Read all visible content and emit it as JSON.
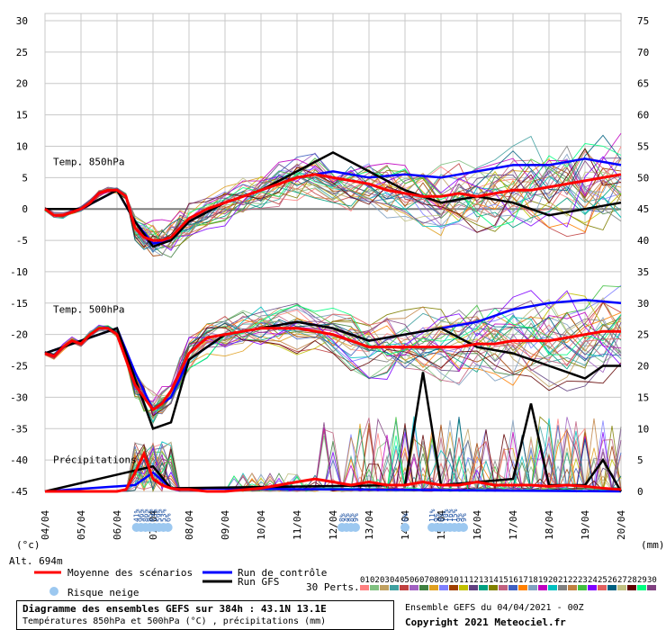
{
  "chart_data": {
    "type": "line",
    "x_dates": [
      "04/04",
      "05/04",
      "06/04",
      "07/04",
      "08/04",
      "09/04",
      "10/04",
      "11/04",
      "12/04",
      "13/04",
      "14/04",
      "15/04",
      "16/04",
      "17/04",
      "18/04",
      "19/04",
      "20/04"
    ],
    "x_range_hours": [
      0,
      384
    ],
    "left_ticks": [
      30,
      25,
      20,
      15,
      10,
      5,
      0,
      -5,
      -10,
      -15,
      -20,
      -25,
      -30,
      -35,
      -40,
      -45
    ],
    "left_unit": "(°c)",
    "right_ticks": [
      75,
      70,
      65,
      60,
      55,
      50,
      45,
      40,
      35,
      30,
      25,
      20,
      15,
      10,
      5,
      0
    ],
    "right_unit": "(mm)",
    "ylim_temp": [
      -45,
      30
    ],
    "ylim_precip": [
      0,
      75
    ],
    "grid": true,
    "panels": {
      "t850": "Temp. 850hPa",
      "t500": "Temp. 500hPa",
      "precip": "Précipitations"
    },
    "series": [
      {
        "name": "Moyenne des scénarios",
        "color": "#ff0000",
        "t850": [
          [
            0,
            0
          ],
          [
            6,
            -1
          ],
          [
            12,
            -1
          ],
          [
            18,
            -0.5
          ],
          [
            24,
            0
          ],
          [
            30,
            1
          ],
          [
            36,
            2.5
          ],
          [
            42,
            3
          ],
          [
            48,
            3
          ],
          [
            54,
            2
          ],
          [
            60,
            -3
          ],
          [
            66,
            -4.5
          ],
          [
            72,
            -5
          ],
          [
            78,
            -5
          ],
          [
            84,
            -4.5
          ],
          [
            90,
            -3
          ],
          [
            96,
            -1.5
          ],
          [
            108,
            0
          ],
          [
            120,
            1
          ],
          [
            132,
            2
          ],
          [
            144,
            3
          ],
          [
            156,
            4
          ],
          [
            168,
            5
          ],
          [
            180,
            5.5
          ],
          [
            192,
            5
          ],
          [
            204,
            4.5
          ],
          [
            216,
            4
          ],
          [
            228,
            3
          ],
          [
            240,
            2.5
          ],
          [
            252,
            2
          ],
          [
            264,
            2
          ],
          [
            276,
            2.5
          ],
          [
            288,
            2
          ],
          [
            300,
            2.5
          ],
          [
            312,
            3
          ],
          [
            324,
            3
          ],
          [
            336,
            3.5
          ],
          [
            348,
            4
          ],
          [
            360,
            4.5
          ],
          [
            372,
            5
          ],
          [
            384,
            5.5
          ]
        ],
        "t500": [
          [
            0,
            -23
          ],
          [
            6,
            -23.5
          ],
          [
            12,
            -22
          ],
          [
            18,
            -21
          ],
          [
            24,
            -21.5
          ],
          [
            30,
            -20
          ],
          [
            36,
            -19
          ],
          [
            42,
            -19
          ],
          [
            48,
            -20
          ],
          [
            54,
            -24
          ],
          [
            60,
            -28
          ],
          [
            66,
            -30
          ],
          [
            72,
            -32
          ],
          [
            78,
            -31
          ],
          [
            84,
            -29
          ],
          [
            90,
            -26
          ],
          [
            96,
            -23
          ],
          [
            108,
            -20.5
          ],
          [
            120,
            -20
          ],
          [
            132,
            -19.5
          ],
          [
            144,
            -19
          ],
          [
            156,
            -19
          ],
          [
            168,
            -19
          ],
          [
            180,
            -19.5
          ],
          [
            192,
            -20
          ],
          [
            204,
            -21
          ],
          [
            216,
            -22
          ],
          [
            228,
            -22
          ],
          [
            240,
            -22
          ],
          [
            252,
            -22
          ],
          [
            264,
            -22
          ],
          [
            276,
            -22
          ],
          [
            288,
            -21.5
          ],
          [
            300,
            -21.5
          ],
          [
            312,
            -21
          ],
          [
            324,
            -21
          ],
          [
            336,
            -21
          ],
          [
            348,
            -20.5
          ],
          [
            360,
            -20
          ],
          [
            372,
            -19.5
          ],
          [
            384,
            -19.5
          ]
        ],
        "precip": [
          [
            0,
            0
          ],
          [
            48,
            0
          ],
          [
            54,
            0.3
          ],
          [
            60,
            3
          ],
          [
            66,
            6
          ],
          [
            72,
            2
          ],
          [
            78,
            1
          ],
          [
            84,
            0.5
          ],
          [
            90,
            0.3
          ],
          [
            96,
            0.3
          ],
          [
            108,
            0
          ],
          [
            120,
            0
          ],
          [
            144,
            0.5
          ],
          [
            168,
            1.5
          ],
          [
            180,
            2
          ],
          [
            192,
            1.5
          ],
          [
            204,
            1
          ],
          [
            216,
            1.5
          ],
          [
            228,
            1
          ],
          [
            240,
            1
          ],
          [
            252,
            1.5
          ],
          [
            264,
            1
          ],
          [
            276,
            1
          ],
          [
            288,
            1.5
          ],
          [
            300,
            1
          ],
          [
            312,
            1
          ],
          [
            324,
            1
          ],
          [
            336,
            0.8
          ],
          [
            348,
            1
          ],
          [
            360,
            0.8
          ],
          [
            372,
            0.5
          ],
          [
            384,
            0.3
          ]
        ]
      },
      {
        "name": "Run de contrôle",
        "color": "#0000ff",
        "t850": [
          [
            0,
            0
          ],
          [
            24,
            0
          ],
          [
            48,
            3
          ],
          [
            60,
            -2
          ],
          [
            72,
            -5.5
          ],
          [
            84,
            -5
          ],
          [
            96,
            -2
          ],
          [
            120,
            1
          ],
          [
            144,
            3
          ],
          [
            168,
            5
          ],
          [
            192,
            6
          ],
          [
            216,
            5
          ],
          [
            240,
            5.5
          ],
          [
            264,
            5
          ],
          [
            288,
            6
          ],
          [
            312,
            7
          ],
          [
            336,
            7
          ],
          [
            360,
            8
          ],
          [
            384,
            7
          ]
        ],
        "t500": [
          [
            0,
            -23
          ],
          [
            24,
            -21
          ],
          [
            48,
            -19
          ],
          [
            60,
            -26
          ],
          [
            72,
            -32
          ],
          [
            84,
            -30
          ],
          [
            96,
            -24
          ],
          [
            120,
            -20
          ],
          [
            144,
            -19
          ],
          [
            168,
            -18
          ],
          [
            192,
            -19
          ],
          [
            216,
            -21
          ],
          [
            240,
            -20
          ],
          [
            264,
            -19
          ],
          [
            288,
            -18
          ],
          [
            312,
            -16
          ],
          [
            336,
            -15
          ],
          [
            360,
            -14.5
          ],
          [
            384,
            -15
          ]
        ],
        "precip": [
          [
            0,
            0
          ],
          [
            60,
            1
          ],
          [
            72,
            3
          ],
          [
            84,
            0.5
          ],
          [
            384,
            0
          ]
        ]
      },
      {
        "name": "Run GFS",
        "color": "#000000",
        "t850": [
          [
            0,
            0
          ],
          [
            24,
            0
          ],
          [
            48,
            3
          ],
          [
            60,
            -2
          ],
          [
            72,
            -6
          ],
          [
            84,
            -5
          ],
          [
            96,
            -2
          ],
          [
            120,
            1
          ],
          [
            144,
            3
          ],
          [
            168,
            6
          ],
          [
            192,
            9
          ],
          [
            216,
            6
          ],
          [
            240,
            3
          ],
          [
            264,
            1
          ],
          [
            288,
            2
          ],
          [
            312,
            1
          ],
          [
            336,
            -1
          ],
          [
            360,
            0
          ],
          [
            384,
            1
          ]
        ],
        "t500": [
          [
            0,
            -23
          ],
          [
            24,
            -21
          ],
          [
            48,
            -19
          ],
          [
            60,
            -27
          ],
          [
            72,
            -35
          ],
          [
            84,
            -34
          ],
          [
            96,
            -24
          ],
          [
            120,
            -20
          ],
          [
            144,
            -19
          ],
          [
            168,
            -18
          ],
          [
            192,
            -19
          ],
          [
            216,
            -21
          ],
          [
            240,
            -20
          ],
          [
            264,
            -19
          ],
          [
            288,
            -22
          ],
          [
            312,
            -23
          ],
          [
            336,
            -25
          ],
          [
            360,
            -27
          ],
          [
            372,
            -25
          ],
          [
            384,
            -25
          ]
        ],
        "precip": [
          [
            0,
            0
          ],
          [
            72,
            4
          ],
          [
            84,
            0.5
          ],
          [
            240,
            1
          ],
          [
            252,
            19
          ],
          [
            264,
            1
          ],
          [
            312,
            2
          ],
          [
            324,
            14
          ],
          [
            336,
            1
          ],
          [
            360,
            1
          ],
          [
            372,
            5
          ],
          [
            384,
            0
          ]
        ]
      }
    ],
    "snow_risk": [
      {
        "hour": 61,
        "pct": "41%"
      },
      {
        "hour": 64,
        "pct": "96%"
      },
      {
        "hour": 67,
        "pct": "86%"
      },
      {
        "hour": 70,
        "pct": "85%"
      },
      {
        "hour": 73,
        "pct": "53%"
      },
      {
        "hour": 76,
        "pct": "59%"
      },
      {
        "hour": 79,
        "pct": "53%"
      },
      {
        "hour": 82,
        "pct": "6%"
      },
      {
        "hour": 198,
        "pct": "8%"
      },
      {
        "hour": 201,
        "pct": "4%"
      },
      {
        "hour": 204,
        "pct": "8%"
      },
      {
        "hour": 207,
        "pct": "9%"
      },
      {
        "hour": 240,
        "pct": "6%"
      },
      {
        "hour": 258,
        "pct": "11%"
      },
      {
        "hour": 261,
        "pct": "9%"
      },
      {
        "hour": 264,
        "pct": "8%"
      },
      {
        "hour": 267,
        "pct": "10%"
      },
      {
        "hour": 270,
        "pct": "16%"
      },
      {
        "hour": 273,
        "pct": "15%"
      },
      {
        "hour": 276,
        "pct": "9%"
      },
      {
        "hour": 279,
        "pct": "9%"
      }
    ]
  },
  "legend": {
    "altitude": "Alt. 694m",
    "mean": "Moyenne des scénarios",
    "control": "Run de contrôle",
    "gfs": "Run GFS",
    "snow": "Risque neige",
    "perts_label": "30 Perts.",
    "perts": [
      "01",
      "02",
      "03",
      "04",
      "05",
      "06",
      "07",
      "08",
      "09",
      "10",
      "11",
      "12",
      "13",
      "14",
      "15",
      "16",
      "17",
      "18",
      "19",
      "20",
      "21",
      "22",
      "23",
      "24",
      "25",
      "26",
      "27",
      "28",
      "29",
      "30"
    ],
    "pert_colors": [
      "#ff8080",
      "#80c080",
      "#c0a060",
      "#40a0a0",
      "#c04040",
      "#a060c0",
      "#408040",
      "#e0a020",
      "#8080ff",
      "#a04000",
      "#c0c000",
      "#604080",
      "#00a080",
      "#808000",
      "#c06080",
      "#4060c0",
      "#ff8000",
      "#80a0c0",
      "#c000c0",
      "#00c0c0",
      "#808080",
      "#c08040",
      "#40c040",
      "#8000ff",
      "#e06060",
      "#006080",
      "#c0c080",
      "#600000",
      "#00ff80",
      "#804080"
    ]
  },
  "footer": {
    "title": "Diagramme des ensembles GEFS sur 384h : 43.1N 13.1E",
    "subtitle": "Températures 850hPa et 500hPa (°C) , précipitations (mm)",
    "run": "Ensemble GEFS du 04/04/2021 - 00Z",
    "copyright": "Copyright 2021 Meteociel.fr"
  }
}
